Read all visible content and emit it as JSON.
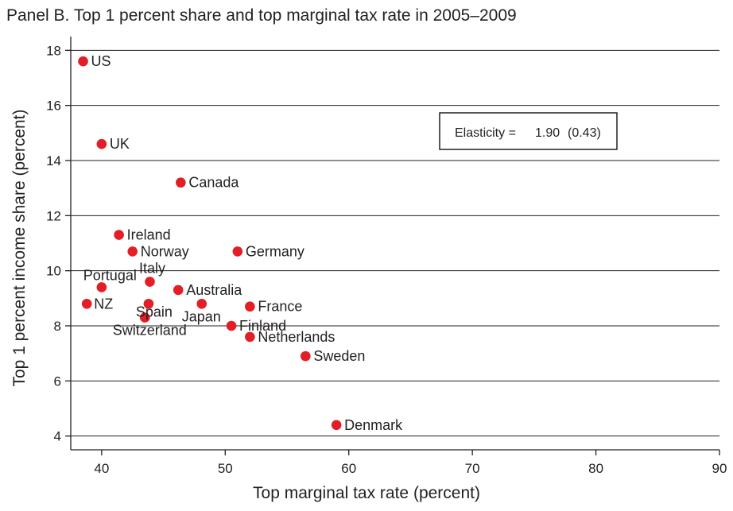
{
  "chart_data": {
    "type": "scatter",
    "title": "Panel B. Top 1 percent share and top marginal tax rate in 2005–2009",
    "xlabel": "Top marginal tax rate (percent)",
    "ylabel": "Top 1 percent income share (percent)",
    "xlim": [
      37.5,
      90
    ],
    "ylim": [
      3.5,
      18.5
    ],
    "xticks": [
      40,
      50,
      60,
      70,
      80,
      90
    ],
    "yticks": [
      4,
      6,
      8,
      10,
      12,
      14,
      16,
      18
    ],
    "grid": "horizontal",
    "marker_color": "#e31e26",
    "points": [
      {
        "label": "US",
        "x": 38.5,
        "y": 17.6
      },
      {
        "label": "UK",
        "x": 40.0,
        "y": 14.6
      },
      {
        "label": "Canada",
        "x": 46.4,
        "y": 13.2
      },
      {
        "label": "Ireland",
        "x": 41.4,
        "y": 11.3
      },
      {
        "label": "Norway",
        "x": 42.5,
        "y": 10.7
      },
      {
        "label": "Germany",
        "x": 51.0,
        "y": 10.7
      },
      {
        "label": "Portugal",
        "x": 40.0,
        "y": 9.4
      },
      {
        "label": "Italy",
        "x": 43.9,
        "y": 9.6
      },
      {
        "label": "Australia",
        "x": 46.2,
        "y": 9.3
      },
      {
        "label": "Spain",
        "x": 43.8,
        "y": 8.8
      },
      {
        "label": "NZ",
        "x": 38.8,
        "y": 8.8
      },
      {
        "label": "Japan",
        "x": 48.1,
        "y": 8.8
      },
      {
        "label": "France",
        "x": 52.0,
        "y": 8.7
      },
      {
        "label": "Switzerland",
        "x": 43.5,
        "y": 8.3
      },
      {
        "label": "Finland",
        "x": 50.5,
        "y": 8.0
      },
      {
        "label": "Netherlands",
        "x": 52.0,
        "y": 7.6
      },
      {
        "label": "Sweden",
        "x": 56.5,
        "y": 6.9
      },
      {
        "label": "Denmark",
        "x": 59.0,
        "y": 4.4
      }
    ],
    "annotation": {
      "label": "Elasticity =",
      "value": "1.90",
      "se": "(0.43)"
    }
  }
}
